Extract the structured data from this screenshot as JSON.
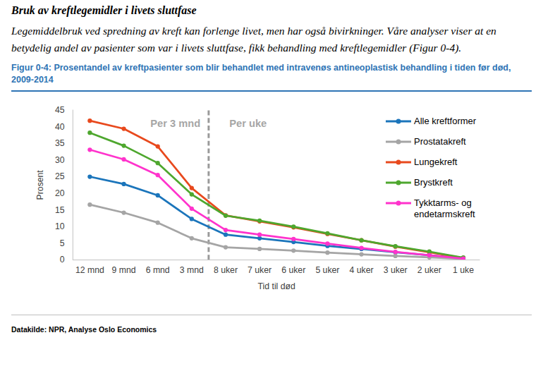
{
  "page": {
    "heading": "Bruk av kreftlegemidler i livets sluttfase",
    "text": "Legemiddelbruk ved spredning av kreft kan forlenge livet, men har også bivirkninger. Våre analyser viser at en betydelig andel av pasienter som var i livets sluttfase, fikk behandling med kreftlegemidler (Figur 0-4)."
  },
  "chart_data": {
    "type": "line",
    "title": "Figur 0-4: Prosentandel av kreftpasienter som blir behandlet med intravenøs antineoplastisk behandling i tiden før død, 2009-2014",
    "xlabel": "Tid til død",
    "ylabel": "Prosent",
    "source": "Datakilde: NPR, Analyse Oslo Economics",
    "annotations": [
      "Per 3 mnd",
      "Per uke"
    ],
    "categories": [
      "12 mnd",
      "9 mnd",
      "6 mnd",
      "3 mnd",
      "8 uker",
      "7 uker",
      "6 uker",
      "5 uker",
      "4 uker",
      "3 uker",
      "2 uker",
      "1 uke"
    ],
    "series": [
      {
        "name": "Alle kreftformer",
        "color": "#1b75bb",
        "values": [
          25,
          22.8,
          19.4,
          12.3,
          7.6,
          6.5,
          5.4,
          4.2,
          3.3,
          2.3,
          1.4,
          0.5
        ]
      },
      {
        "name": "Prostatakreft",
        "color": "#a5a5a5",
        "values": [
          16.6,
          14.2,
          11.2,
          6.5,
          3.8,
          3.3,
          2.8,
          2.2,
          1.7,
          1.2,
          0.8,
          0.3
        ]
      },
      {
        "name": "Lungekreft",
        "color": "#e8491d",
        "values": [
          41.8,
          39.4,
          34.1,
          21.6,
          13.4,
          11.6,
          9.8,
          7.8,
          5.9,
          4.0,
          2.3,
          0.6
        ]
      },
      {
        "name": "Brystkreft",
        "color": "#4ea72e",
        "values": [
          38.2,
          34.3,
          29.1,
          19.7,
          13.3,
          11.8,
          10.0,
          8.0,
          5.9,
          4.1,
          2.5,
          0.7
        ]
      },
      {
        "name": "Tykktarms- og endetarmskreft",
        "color": "#ff33cc",
        "values": [
          33.1,
          30.2,
          25.5,
          15.4,
          9.0,
          7.6,
          6.3,
          4.9,
          3.6,
          2.4,
          1.4,
          0.4
        ]
      }
    ],
    "ylim": [
      0,
      45
    ],
    "yticks": [
      0,
      5,
      10,
      15,
      20,
      25,
      30,
      35,
      40,
      45
    ],
    "grid": false,
    "legend": "top-right",
    "marker": "circle"
  }
}
